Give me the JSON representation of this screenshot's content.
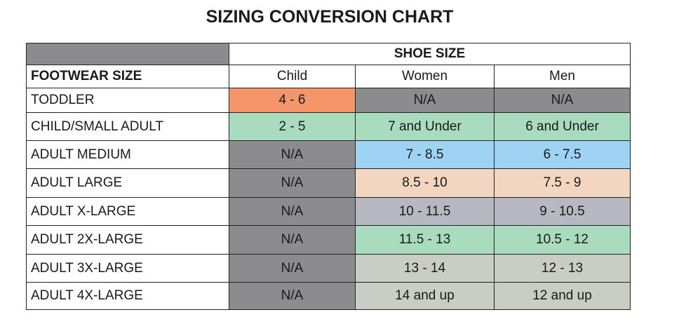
{
  "title": "SIZING CONVERSION CHART",
  "table": {
    "group_header": "SHOE SIZE",
    "columns": [
      "FOOTWEAR SIZE",
      "Child",
      "Women",
      "Men"
    ],
    "rows": [
      [
        "TODDLER",
        "4 - 6",
        "N/A",
        "N/A"
      ],
      [
        "CHILD/SMALL ADULT",
        "2 - 5",
        "7 and Under",
        "6 and Under"
      ],
      [
        "ADULT MEDIUM",
        "N/A",
        "7 - 8.5",
        "6 - 7.5"
      ],
      [
        "ADULT LARGE",
        "N/A",
        "8.5 - 10",
        "7.5 - 9"
      ],
      [
        "ADULT X-LARGE",
        "N/A",
        "10 - 11.5",
        "9 - 10.5"
      ],
      [
        "ADULT 2X-LARGE",
        "N/A",
        "11.5 - 13",
        "10.5 - 12"
      ],
      [
        "ADULT 3X-LARGE",
        "N/A",
        "13 - 14",
        "12 - 13"
      ],
      [
        "ADULT 4X-LARGE",
        "N/A",
        "14 and up",
        "12 and up"
      ]
    ]
  }
}
